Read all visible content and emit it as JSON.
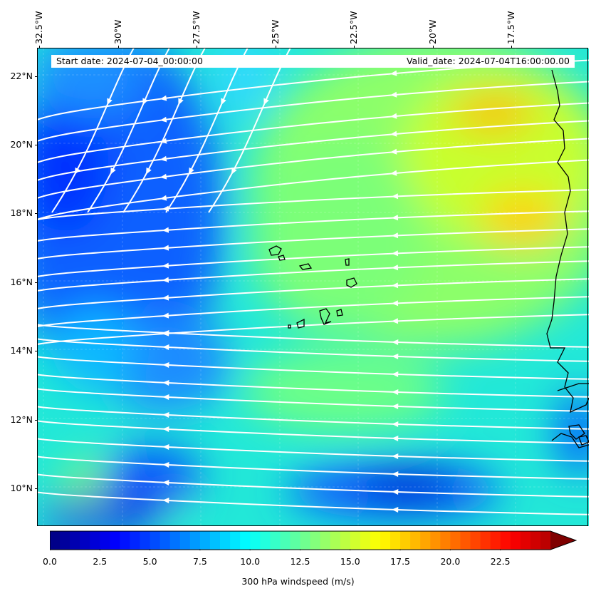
{
  "header": {
    "start_date": "Start date: 2024-07-04_00:00:00",
    "valid_date": "Valid_date: 2024-07-04T16:00:00.00"
  },
  "axes": {
    "lon_ticks": [
      "32.5°W",
      "30°W",
      "27.5°W",
      "25°W",
      "22.5°W",
      "20°W",
      "17.5°W"
    ],
    "lon_values": [
      -32.5,
      -30,
      -27.5,
      -25,
      -22.5,
      -20,
      -17.5
    ],
    "lat_ticks": [
      "22°N",
      "20°N",
      "18°N",
      "16°N",
      "14°N",
      "12°N",
      "10°N"
    ],
    "lat_values": [
      22,
      20,
      18,
      16,
      14,
      12,
      10
    ],
    "lon_range": [
      -32.5,
      -15.0
    ],
    "lat_range": [
      8.9,
      22.8
    ]
  },
  "colorbar": {
    "label": "300 hPa windspeed (m/s)",
    "ticks": [
      "0.0",
      "2.5",
      "5.0",
      "7.5",
      "10.0",
      "12.5",
      "15.0",
      "17.5",
      "20.0",
      "22.5"
    ],
    "tick_values": [
      0,
      2.5,
      5,
      7.5,
      10,
      12.5,
      15,
      17.5,
      20,
      22.5
    ],
    "range": [
      0,
      25
    ],
    "extend": "max",
    "colormap": "jet",
    "colors": [
      "#00007f",
      "#0000c4",
      "#0000ff",
      "#0040ff",
      "#0080ff",
      "#00c0ff",
      "#14ffe2",
      "#4fffa6",
      "#8bff6a",
      "#c6ff2e",
      "#ffe600",
      "#ffa600",
      "#ff6800",
      "#ff2900",
      "#d70000",
      "#7f0000"
    ]
  },
  "windspeed_field": {
    "description_units": "m/s",
    "regions": [
      {
        "name": "northwest-low",
        "lon": -31.5,
        "lat": 19.5,
        "value": 4
      },
      {
        "name": "west-low",
        "lon": -30.5,
        "lat": 16.5,
        "value": 6
      },
      {
        "name": "southwest-low",
        "lon": -29.5,
        "lat": 10.3,
        "value": 4
      },
      {
        "name": "south-central-low",
        "lon": -21.5,
        "lat": 9.9,
        "value": 5
      },
      {
        "name": "northeast-high",
        "lon": -18.5,
        "lat": 21.0,
        "value": 17
      },
      {
        "name": "east-high",
        "lon": -15.8,
        "lat": 17.8,
        "value": 16
      },
      {
        "name": "central",
        "lon": -22.5,
        "lat": 17.5,
        "value": 12
      }
    ]
  }
}
